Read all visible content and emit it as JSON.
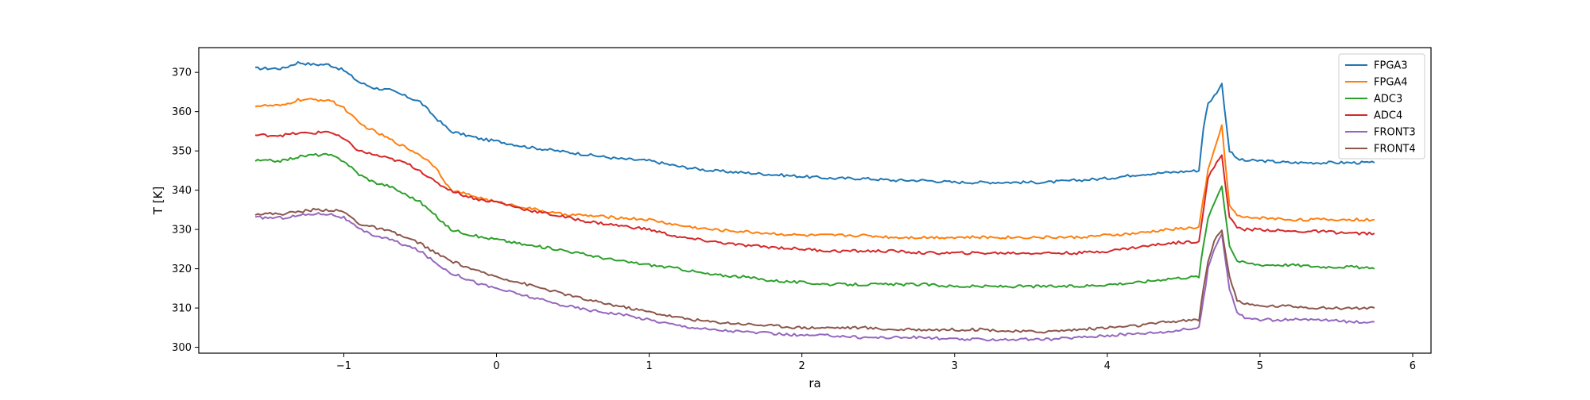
{
  "chart_data": {
    "type": "line",
    "title": "",
    "xlabel": "ra",
    "ylabel": "T [K]",
    "xlim": [
      -1.95,
      6.12
    ],
    "ylim": [
      298.5,
      376.3
    ],
    "x_ticks": [
      -1,
      0,
      1,
      2,
      3,
      4,
      5,
      6
    ],
    "x_tick_labels": [
      "−1",
      "0",
      "1",
      "2",
      "3",
      "4",
      "5",
      "6"
    ],
    "y_ticks": [
      300,
      310,
      320,
      330,
      340,
      350,
      360,
      370
    ],
    "y_tick_labels": [
      "300",
      "310",
      "320",
      "330",
      "340",
      "350",
      "360",
      "370"
    ],
    "grid": false,
    "legend_position": "upper right",
    "x": [
      -1.58,
      -1.4,
      -1.3,
      -1.2,
      -1.1,
      -1.0,
      -0.9,
      -0.8,
      -0.7,
      -0.6,
      -0.5,
      -0.4,
      -0.3,
      -0.2,
      -0.1,
      0.0,
      0.2,
      0.4,
      0.6,
      0.8,
      1.0,
      1.2,
      1.4,
      1.6,
      1.8,
      2.0,
      2.2,
      2.4,
      2.6,
      2.8,
      3.0,
      3.2,
      3.4,
      3.6,
      3.8,
      4.0,
      4.2,
      4.4,
      4.6,
      4.63,
      4.66,
      4.7,
      4.75,
      4.8,
      4.85,
      4.9,
      5.0,
      5.2,
      5.4,
      5.6,
      5.75
    ],
    "series": [
      {
        "name": "FPGA3",
        "color": "#1f77b4",
        "values": [
          371.0,
          371.0,
          372.5,
          372.0,
          372.0,
          370.5,
          367.5,
          366.0,
          365.5,
          364.0,
          362.5,
          358.5,
          355.0,
          354.0,
          353.0,
          352.5,
          351.0,
          350.0,
          349.0,
          348.0,
          347.5,
          346.0,
          345.0,
          344.5,
          344.0,
          343.5,
          343.0,
          343.0,
          342.5,
          342.5,
          342.0,
          342.0,
          342.0,
          342.0,
          342.5,
          343.0,
          344.0,
          344.5,
          345.0,
          356.0,
          362.0,
          364.0,
          367.0,
          350.0,
          348.0,
          347.5,
          347.5,
          347.0,
          347.0,
          347.0,
          347.0
        ]
      },
      {
        "name": "FPGA4",
        "color": "#ff7f0e",
        "values": [
          361.5,
          361.5,
          363.0,
          363.0,
          363.0,
          361.0,
          357.0,
          355.0,
          353.0,
          351.0,
          349.0,
          346.0,
          340.0,
          339.0,
          338.0,
          337.0,
          335.5,
          334.0,
          333.5,
          333.0,
          332.5,
          331.0,
          330.0,
          329.5,
          329.0,
          328.5,
          328.5,
          328.5,
          328.0,
          328.0,
          328.0,
          328.0,
          328.0,
          328.0,
          328.0,
          328.5,
          329.0,
          330.0,
          330.5,
          338.0,
          345.0,
          350.0,
          356.5,
          336.0,
          333.5,
          333.0,
          333.0,
          332.5,
          332.5,
          332.5,
          332.5
        ]
      },
      {
        "name": "ADC3",
        "color": "#2ca02c",
        "values": [
          347.5,
          347.5,
          348.5,
          349.0,
          349.0,
          347.5,
          344.0,
          342.0,
          341.0,
          339.0,
          337.0,
          333.5,
          330.0,
          329.0,
          328.0,
          327.5,
          326.0,
          325.0,
          323.5,
          322.0,
          321.0,
          320.0,
          318.5,
          318.0,
          317.0,
          316.5,
          316.0,
          316.0,
          316.0,
          316.0,
          315.5,
          315.5,
          315.5,
          315.5,
          315.5,
          316.0,
          316.5,
          317.5,
          318.0,
          326.0,
          333.0,
          337.0,
          341.0,
          326.0,
          322.0,
          321.5,
          321.0,
          321.0,
          320.5,
          320.5,
          320.0
        ]
      },
      {
        "name": "ADC4",
        "color": "#d62728",
        "values": [
          354.0,
          354.0,
          354.5,
          354.5,
          355.0,
          353.0,
          350.0,
          349.0,
          348.0,
          347.0,
          345.0,
          342.0,
          340.0,
          338.5,
          337.5,
          337.0,
          335.0,
          333.5,
          332.0,
          331.0,
          330.0,
          328.0,
          327.0,
          326.0,
          325.5,
          325.0,
          324.5,
          324.5,
          324.5,
          324.0,
          324.0,
          324.0,
          324.0,
          324.0,
          324.0,
          324.5,
          325.5,
          326.5,
          327.0,
          335.0,
          343.0,
          346.0,
          349.0,
          333.0,
          330.5,
          330.0,
          330.0,
          329.5,
          329.5,
          329.0,
          329.0
        ]
      },
      {
        "name": "FRONT3",
        "color": "#9467bd",
        "values": [
          333.0,
          333.0,
          333.5,
          334.0,
          334.0,
          333.0,
          330.0,
          328.5,
          327.5,
          326.0,
          324.5,
          321.5,
          319.0,
          317.5,
          316.0,
          315.0,
          313.0,
          311.0,
          309.5,
          308.5,
          307.0,
          305.5,
          304.5,
          304.0,
          303.5,
          303.0,
          303.0,
          302.5,
          302.5,
          302.5,
          302.0,
          302.0,
          302.0,
          302.0,
          302.5,
          303.0,
          303.5,
          304.0,
          305.0,
          312.0,
          320.0,
          325.0,
          329.0,
          315.0,
          309.0,
          307.5,
          307.0,
          307.0,
          307.0,
          306.5,
          306.5
        ]
      },
      {
        "name": "FRONT4",
        "color": "#8c564b",
        "values": [
          334.0,
          334.0,
          334.5,
          335.0,
          335.0,
          334.5,
          331.5,
          330.5,
          329.5,
          328.0,
          326.5,
          324.0,
          322.0,
          320.5,
          319.0,
          318.0,
          316.0,
          314.0,
          312.0,
          310.5,
          309.0,
          307.5,
          306.5,
          306.0,
          305.5,
          305.0,
          305.0,
          305.0,
          304.5,
          304.5,
          304.5,
          304.5,
          304.0,
          304.0,
          304.5,
          305.0,
          305.5,
          306.5,
          307.0,
          315.0,
          322.0,
          327.0,
          330.0,
          318.0,
          312.0,
          311.0,
          310.5,
          310.5,
          310.0,
          310.0,
          310.0
        ]
      }
    ]
  }
}
